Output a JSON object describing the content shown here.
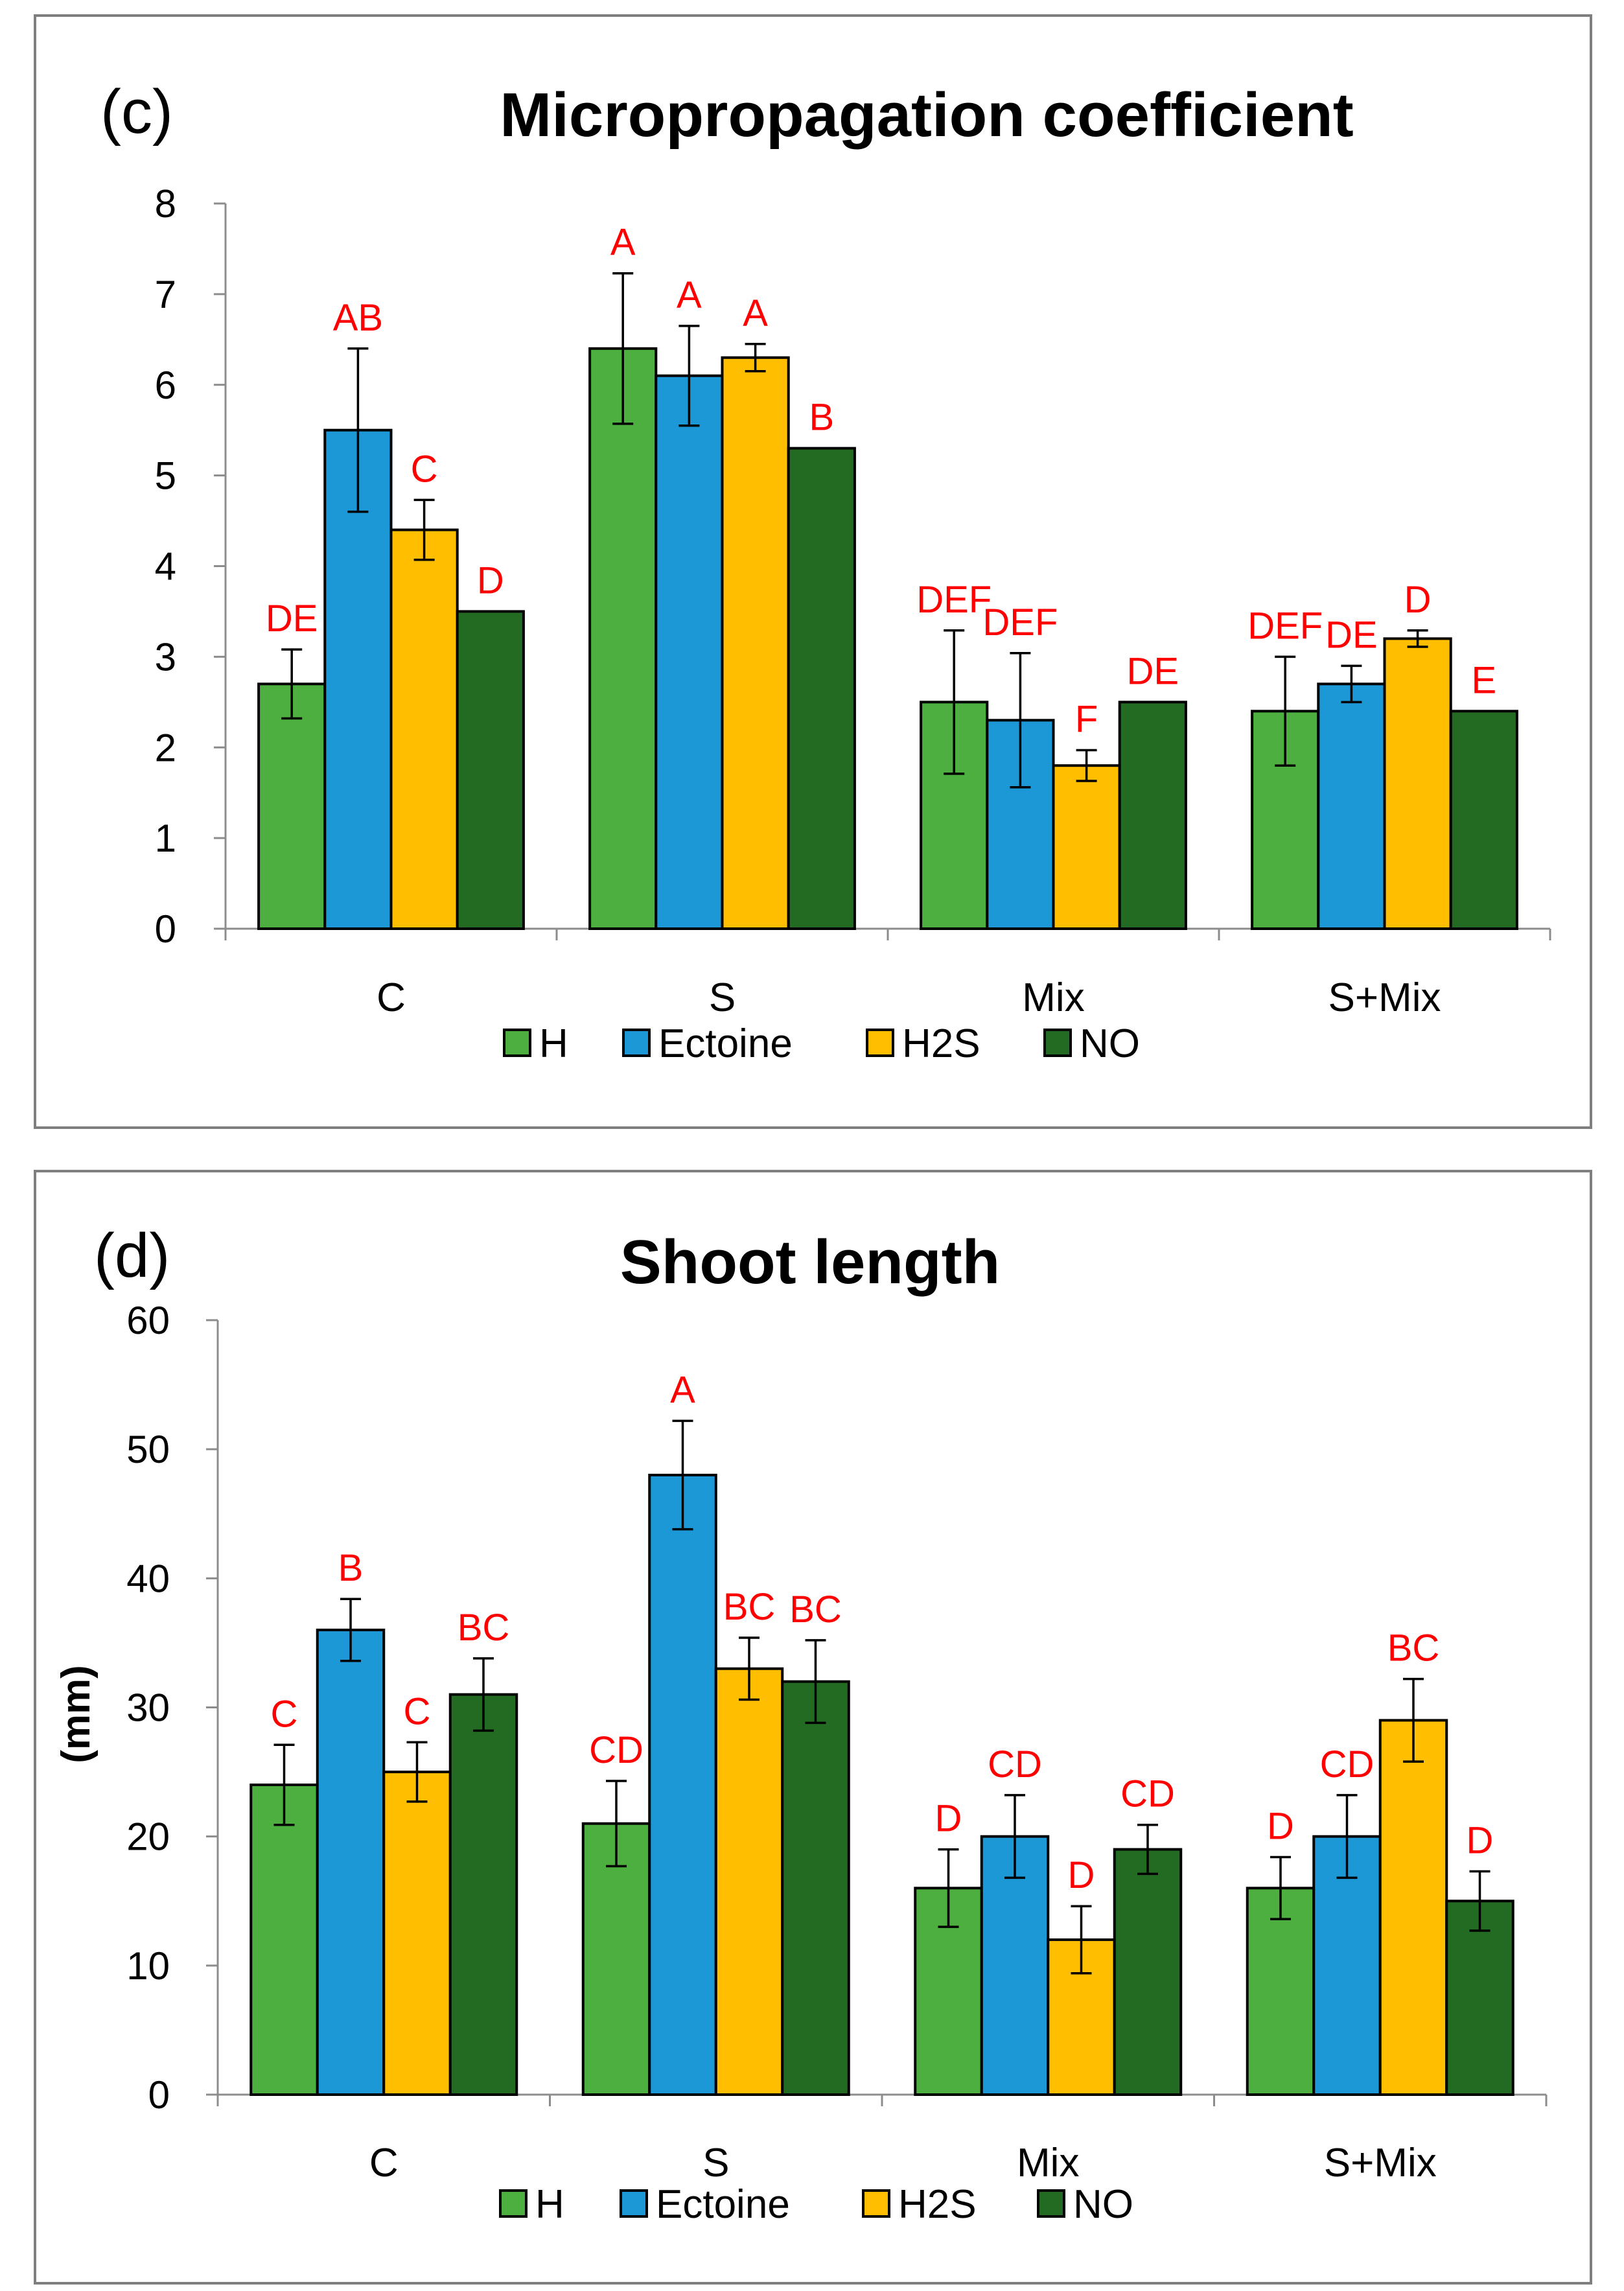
{
  "colors": {
    "H": "#4caf3f",
    "Ectoine": "#1d98d7",
    "H2S": "#ffbf00",
    "NO": "#236b23",
    "significance": "#ff0000"
  },
  "chart_data": [
    {
      "type": "bar",
      "panel_tag": "(c)",
      "title": "Micropropagation coefficient",
      "xlabel": "",
      "ylabel": "",
      "ylim": [
        0,
        8
      ],
      "yticks": [
        "0",
        "1",
        "2",
        "3",
        "4",
        "5",
        "6",
        "7",
        "8"
      ],
      "categories": [
        "C",
        "S",
        "Mix",
        "S+Mix"
      ],
      "legend_position": "bottom",
      "grid": false,
      "series": [
        {
          "name": "H",
          "values": [
            2.7,
            6.4,
            2.5,
            2.4
          ],
          "errors": [
            0.38,
            0.83,
            0.79,
            0.6
          ],
          "letters": [
            "DE",
            "A",
            "DEF",
            "DEF"
          ]
        },
        {
          "name": "Ectoine",
          "values": [
            5.5,
            6.1,
            2.3,
            2.7
          ],
          "errors": [
            0.9,
            0.55,
            0.74,
            0.2
          ],
          "letters": [
            "AB",
            "A",
            "DEF",
            "DE"
          ]
        },
        {
          "name": "H2S",
          "values": [
            4.4,
            6.3,
            1.8,
            3.2
          ],
          "errors": [
            0.33,
            0.15,
            0.17,
            0.09
          ],
          "letters": [
            "C",
            "A",
            "F",
            "D"
          ]
        },
        {
          "name": "NO",
          "values": [
            3.5,
            5.3,
            2.5,
            2.4
          ],
          "errors": [
            0,
            0,
            0,
            0
          ],
          "letters": [
            "D",
            "B",
            "DE",
            "E"
          ]
        }
      ]
    },
    {
      "type": "bar",
      "panel_tag": "(d)",
      "title": "Shoot length",
      "xlabel": "",
      "ylabel": "(mm)",
      "ylim": [
        0,
        60
      ],
      "yticks": [
        "0",
        "10",
        "20",
        "30",
        "40",
        "50",
        "60"
      ],
      "categories": [
        "C",
        "S",
        "Mix",
        "S+Mix"
      ],
      "legend_position": "bottom",
      "grid": false,
      "series": [
        {
          "name": "H",
          "values": [
            24,
            21,
            16,
            16
          ],
          "errors": [
            3.1,
            3.3,
            3.0,
            2.4
          ],
          "letters": [
            "C",
            "CD",
            "D",
            "D"
          ]
        },
        {
          "name": "Ectoine",
          "values": [
            36,
            48,
            20,
            20
          ],
          "errors": [
            2.4,
            4.2,
            3.2,
            3.2
          ],
          "letters": [
            "B",
            "A",
            "CD",
            "CD"
          ]
        },
        {
          "name": "H2S",
          "values": [
            25,
            33,
            12,
            29
          ],
          "errors": [
            2.3,
            2.4,
            2.6,
            3.2
          ],
          "letters": [
            "C",
            "BC",
            "D",
            "BC"
          ]
        },
        {
          "name": "NO",
          "values": [
            31,
            32,
            19,
            15
          ],
          "errors": [
            2.8,
            3.2,
            1.9,
            2.3
          ],
          "letters": [
            "BC",
            "BC",
            "CD",
            "D"
          ]
        }
      ]
    }
  ]
}
